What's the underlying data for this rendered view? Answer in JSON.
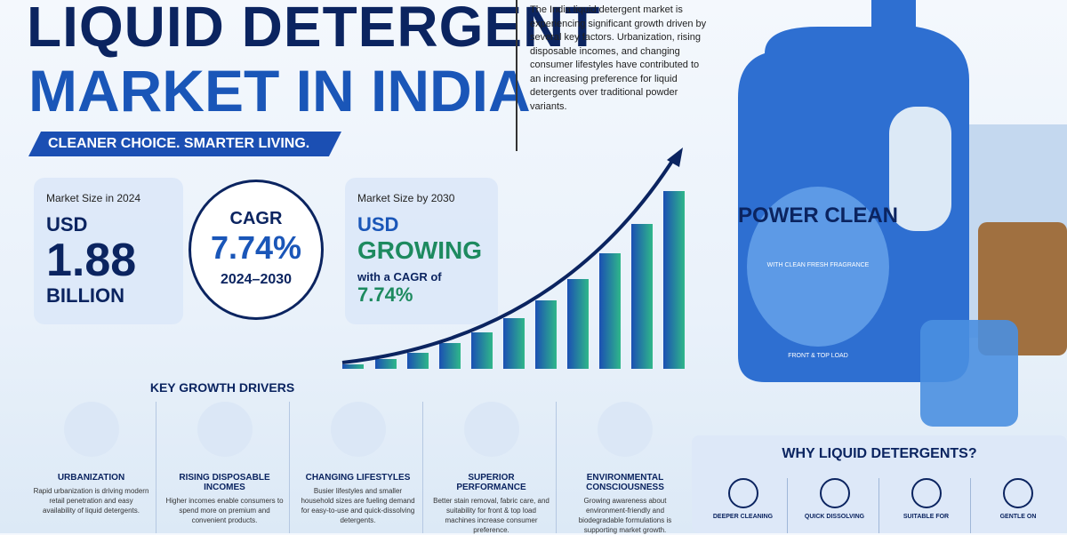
{
  "header": {
    "title_line1": "LIQUID DETERGENT",
    "title_line2": "MARKET IN INDIA",
    "tagline": "CLEANER CHOICE. SMARTER LIVING."
  },
  "intro": "The India liquid detergent market is experiencing significant growth driven by several key factors. Urbanization, rising disposable incomes, and changing consumer lifestyles have contributed to an increasing preference for liquid detergents over traditional powder variants.",
  "stats": [
    {
      "label": "Market Size in 2024",
      "currency": "USD",
      "value": "1.88",
      "unit": "BILLION"
    },
    {
      "label": "CAGR",
      "value": "7.74%",
      "period": "2024–2030"
    },
    {
      "label": "Market Size by 2030",
      "currency": "USD",
      "value": "GROWING",
      "note": "with a CAGR of",
      "rate": "7.74%"
    }
  ],
  "product": {
    "brand": "POWER CLEAN",
    "tagline": "WITH CLEAN FRESH FRAGRANCE",
    "badge": "FRONT & TOP LOAD"
  },
  "drivers": {
    "title": "KEY GROWTH DRIVERS",
    "items": [
      {
        "title": "URBANIZATION",
        "text": "Rapid urbanization is driving modern retail penetration and easy availability of liquid detergents."
      },
      {
        "title": "RISING DISPOSABLE INCOMES",
        "text": "Higher incomes enable consumers to spend more on premium and convenient products."
      },
      {
        "title": "CHANGING LIFESTYLES",
        "text": "Busier lifestyles and smaller household sizes are fueling demand for easy-to-use and quick-dissolving detergents."
      },
      {
        "title": "SUPERIOR PERFORMANCE",
        "text": "Better stain removal, fabric care, and suitability for front & top load machines increase consumer preference."
      },
      {
        "title": "ENVIRONMENTAL CONSCIOUSNESS",
        "text": "Growing awareness about environment-friendly and biodegradable formulations is supporting market growth."
      }
    ]
  },
  "why": {
    "title": "WHY LIQUID DETERGENTS?",
    "items": [
      "DEEPER CLEANING",
      "QUICK DISSOLVING",
      "SUITABLE FOR",
      "GENTLE ON"
    ]
  }
}
